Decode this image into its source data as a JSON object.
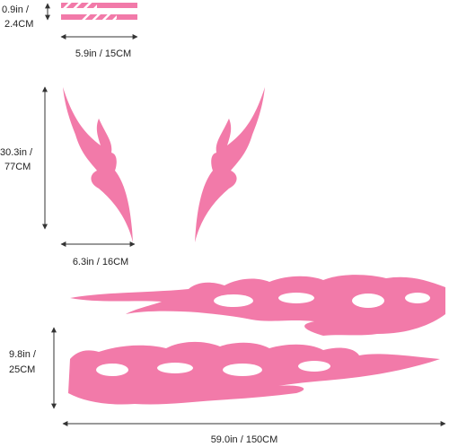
{
  "dimensions": [
    {
      "lines": [
        "0.9in /",
        "2.4CM"
      ]
    },
    {
      "lines": [
        "5.9in / 15CM"
      ]
    },
    {
      "lines": [
        "30.3in /",
        "77CM"
      ]
    },
    {
      "lines": [
        "6.3in / 16CM"
      ]
    },
    {
      "lines": [
        "9.8in /",
        "25CM"
      ]
    },
    {
      "lines": [
        "59.0in / 150CM"
      ]
    }
  ]
}
